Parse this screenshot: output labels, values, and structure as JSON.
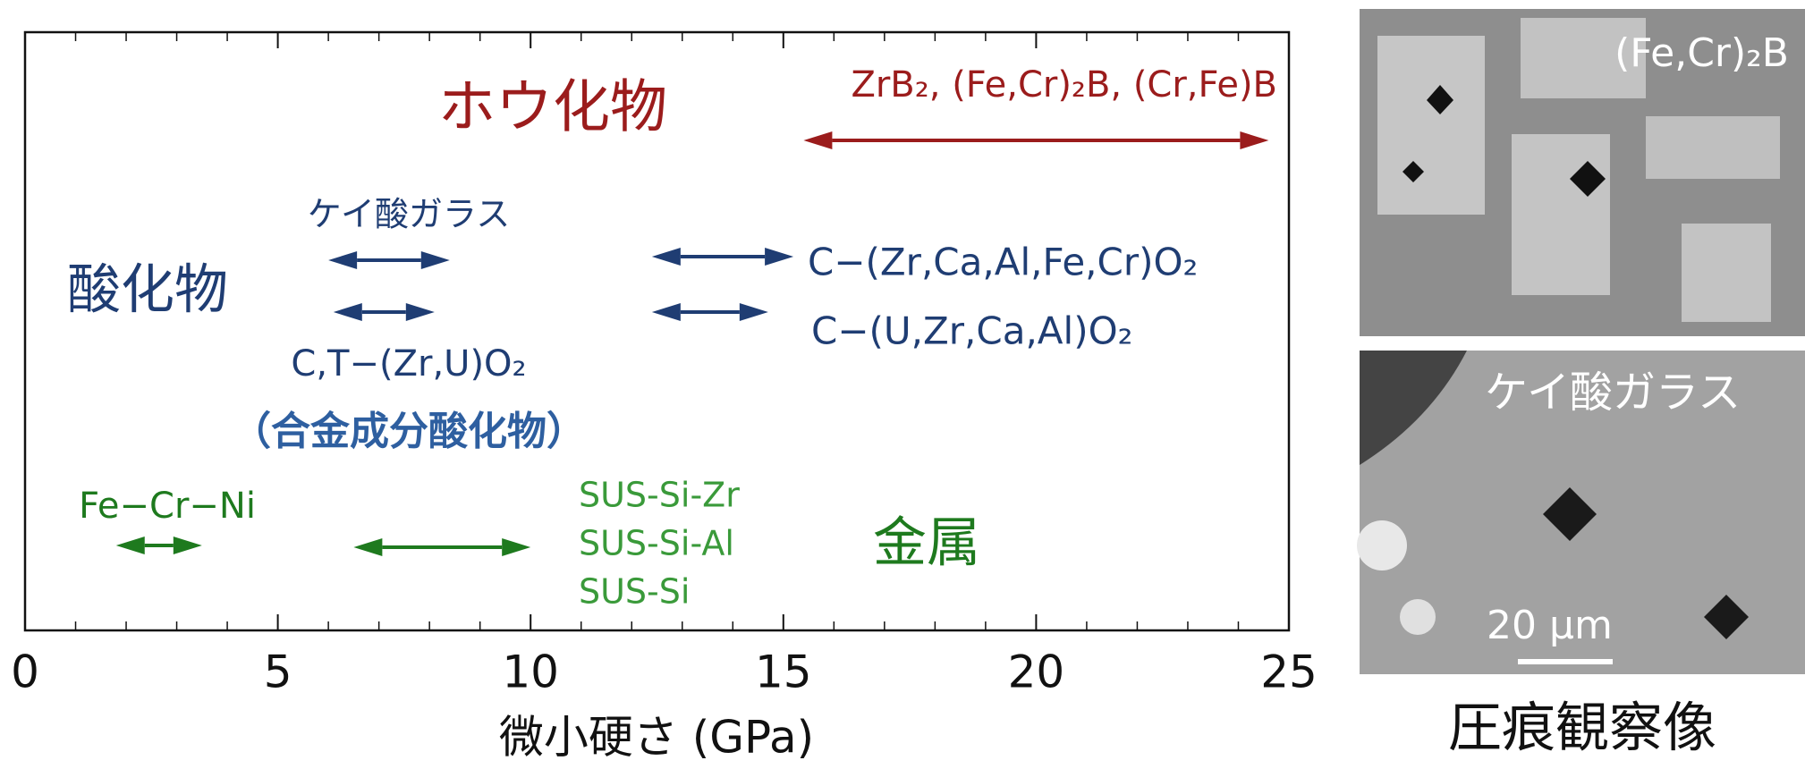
{
  "chart_data": {
    "type": "range",
    "x_label": "微小硬さ (GPa)",
    "xlim": [
      0,
      25
    ],
    "xticks": [
      0,
      5,
      10,
      15,
      20,
      25
    ],
    "minor_xticks": [
      1,
      2,
      3,
      4,
      6,
      7,
      8,
      9,
      11,
      12,
      13,
      14,
      16,
      17,
      18,
      19,
      21,
      22,
      23,
      24
    ],
    "groups": [
      {
        "label": "ホウ化物",
        "color": "#9b1c1c"
      },
      {
        "label": "酸化物",
        "color": "#1f3d73"
      },
      {
        "label": "（合金成分酸化物）",
        "color": "#2e5fa0"
      },
      {
        "label": "金属",
        "color": "#1e7a1e"
      }
    ],
    "items": [
      {
        "labels": [
          "ZrB₂, (Fe,Cr)₂B, (Cr,Fe)B"
        ],
        "min": 15.4,
        "max": 24.6,
        "color": "#9b1c1c"
      },
      {
        "labels": [
          "ケイ酸ガラス"
        ],
        "min": 6.0,
        "max": 8.4,
        "color": "#1f3d73"
      },
      {
        "labels": [
          "C−(Zr,Ca,Al,Fe,Cr)O₂"
        ],
        "min": 12.4,
        "max": 15.2,
        "color": "#1f3d73"
      },
      {
        "labels": [
          "C,T−(Zr,U)O₂"
        ],
        "min": 6.1,
        "max": 8.1,
        "color": "#1f3d73"
      },
      {
        "labels": [
          "C−(U,Zr,Ca,Al)O₂"
        ],
        "min": 12.4,
        "max": 14.7,
        "color": "#1f3d73"
      },
      {
        "labels": [
          "Fe−Cr−Ni"
        ],
        "min": 1.8,
        "max": 3.5,
        "color": "#1e7a1e"
      },
      {
        "labels": [
          "SUS-Si-Zr",
          "SUS-Si-Al",
          "SUS-Si"
        ],
        "min": 6.5,
        "max": 10.0,
        "color": "#1e7a1e"
      }
    ]
  },
  "images": {
    "top_label": "(Fe,Cr)₂B",
    "bottom_label": "ケイ酸ガラス",
    "scale_bar": "20 μm",
    "caption": "圧痕観察像"
  }
}
